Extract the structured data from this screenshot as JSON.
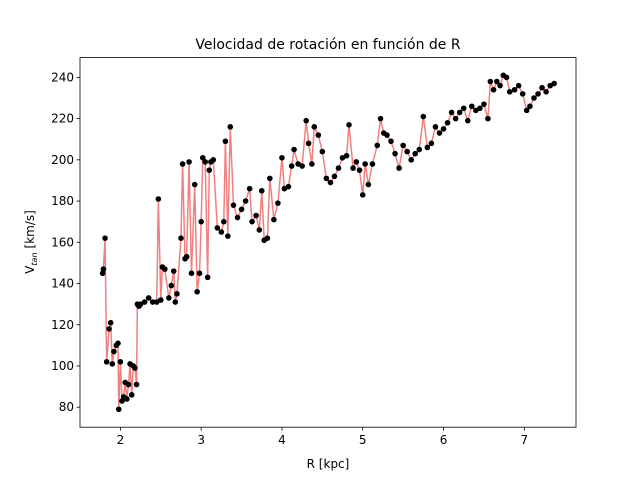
{
  "chart_data": {
    "type": "line",
    "title": "Velocidad de rotación en función de R",
    "xlabel": "R [kpc]",
    "ylabel": {
      "main": "V",
      "sub": "tan",
      "unit": "[km/s]"
    },
    "x": [
      1.78,
      1.79,
      1.81,
      1.83,
      1.86,
      1.88,
      1.9,
      1.92,
      1.95,
      1.97,
      1.98,
      2.0,
      2.02,
      2.04,
      2.06,
      2.08,
      2.1,
      2.12,
      2.14,
      2.16,
      2.18,
      2.2,
      2.21,
      2.23,
      2.25,
      2.3,
      2.35,
      2.4,
      2.45,
      2.47,
      2.5,
      2.52,
      2.55,
      2.6,
      2.63,
      2.66,
      2.68,
      2.7,
      2.75,
      2.77,
      2.8,
      2.82,
      2.85,
      2.88,
      2.92,
      2.95,
      2.98,
      3.0,
      3.02,
      3.05,
      3.08,
      3.1,
      3.12,
      3.15,
      3.2,
      3.25,
      3.28,
      3.3,
      3.33,
      3.36,
      3.4,
      3.45,
      3.5,
      3.55,
      3.6,
      3.63,
      3.68,
      3.72,
      3.75,
      3.78,
      3.82,
      3.85,
      3.9,
      3.95,
      4.0,
      4.03,
      4.08,
      4.12,
      4.15,
      4.2,
      4.25,
      4.3,
      4.33,
      4.37,
      4.4,
      4.45,
      4.5,
      4.55,
      4.6,
      4.65,
      4.7,
      4.75,
      4.8,
      4.83,
      4.88,
      4.92,
      4.96,
      5.0,
      5.03,
      5.07,
      5.12,
      5.18,
      5.22,
      5.26,
      5.3,
      5.35,
      5.4,
      5.45,
      5.5,
      5.55,
      5.6,
      5.65,
      5.7,
      5.75,
      5.8,
      5.85,
      5.9,
      5.95,
      6.0,
      6.05,
      6.1,
      6.15,
      6.2,
      6.25,
      6.3,
      6.35,
      6.4,
      6.45,
      6.5,
      6.55,
      6.58,
      6.62,
      6.66,
      6.7,
      6.74,
      6.78,
      6.82,
      6.88,
      6.93,
      6.98,
      7.03,
      7.07,
      7.12,
      7.17,
      7.22,
      7.27,
      7.32,
      7.37
    ],
    "series": [
      {
        "color": "#f08080",
        "marker_color": "#000000",
        "values": [
          145,
          147,
          162,
          102,
          118,
          121,
          101,
          107,
          110,
          111,
          79,
          102,
          83,
          85,
          92,
          84,
          91,
          101,
          86,
          100,
          99,
          91,
          130,
          129,
          130,
          131,
          133,
          131,
          131,
          181,
          132,
          148,
          147,
          133,
          139,
          146,
          131,
          135,
          162,
          198,
          152,
          153,
          199,
          145,
          188,
          136,
          145,
          170,
          201,
          199,
          143,
          195,
          199,
          200,
          167,
          165,
          170,
          209,
          163,
          216,
          178,
          172,
          176,
          180,
          186,
          170,
          173,
          166,
          185,
          161,
          162,
          191,
          171,
          179,
          201,
          186,
          187,
          197,
          205,
          198,
          197,
          219,
          208,
          198,
          216,
          212,
          204,
          191,
          189,
          192,
          196,
          201,
          202,
          217,
          196,
          199,
          195,
          183,
          198,
          188,
          198,
          207,
          220,
          213,
          212,
          209,
          203,
          196,
          207,
          204,
          200,
          203,
          205,
          221,
          206,
          208,
          216,
          213,
          215,
          218,
          223,
          220,
          223,
          225,
          219,
          226,
          224,
          225,
          227,
          220,
          238,
          234,
          238,
          236,
          241,
          240,
          233,
          234,
          236,
          232,
          224,
          226,
          230,
          232,
          235,
          233,
          236,
          237
        ]
      }
    ],
    "xlim": [
      1.5,
      7.64
    ],
    "ylim": [
      70.3,
      249.6
    ],
    "xticks": [
      2,
      3,
      4,
      5,
      6,
      7
    ],
    "yticks": [
      80,
      100,
      120,
      140,
      160,
      180,
      200,
      220,
      240
    ]
  }
}
